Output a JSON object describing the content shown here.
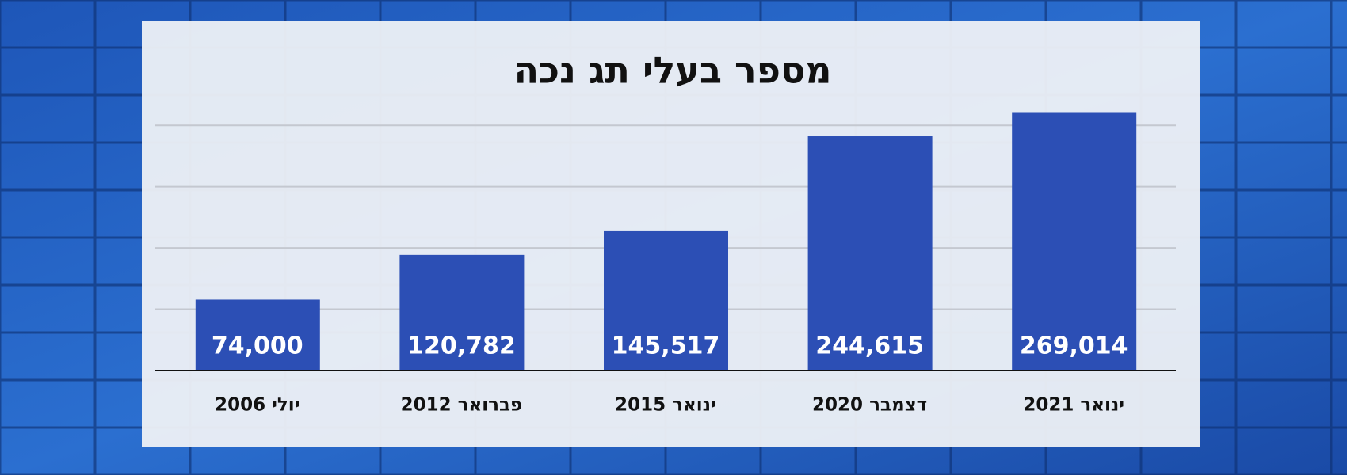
{
  "chart_data": {
    "type": "bar",
    "title": "מספר בעלי תג נכה",
    "categories": [
      "יולי 2006",
      "פברואר 2012",
      "ינואר 2015",
      "דצמבר 2020",
      "ינואר 2021"
    ],
    "values": [
      74000,
      120782,
      145517,
      244615,
      269014
    ],
    "value_labels": [
      "74,000",
      "120,782",
      "145,517",
      "244,615",
      "269,014"
    ],
    "color": "#2c4fb5",
    "ylim": [
      0,
      300000
    ],
    "yticks": [
      0,
      64000,
      128000,
      192000,
      256000
    ],
    "grid": true
  }
}
